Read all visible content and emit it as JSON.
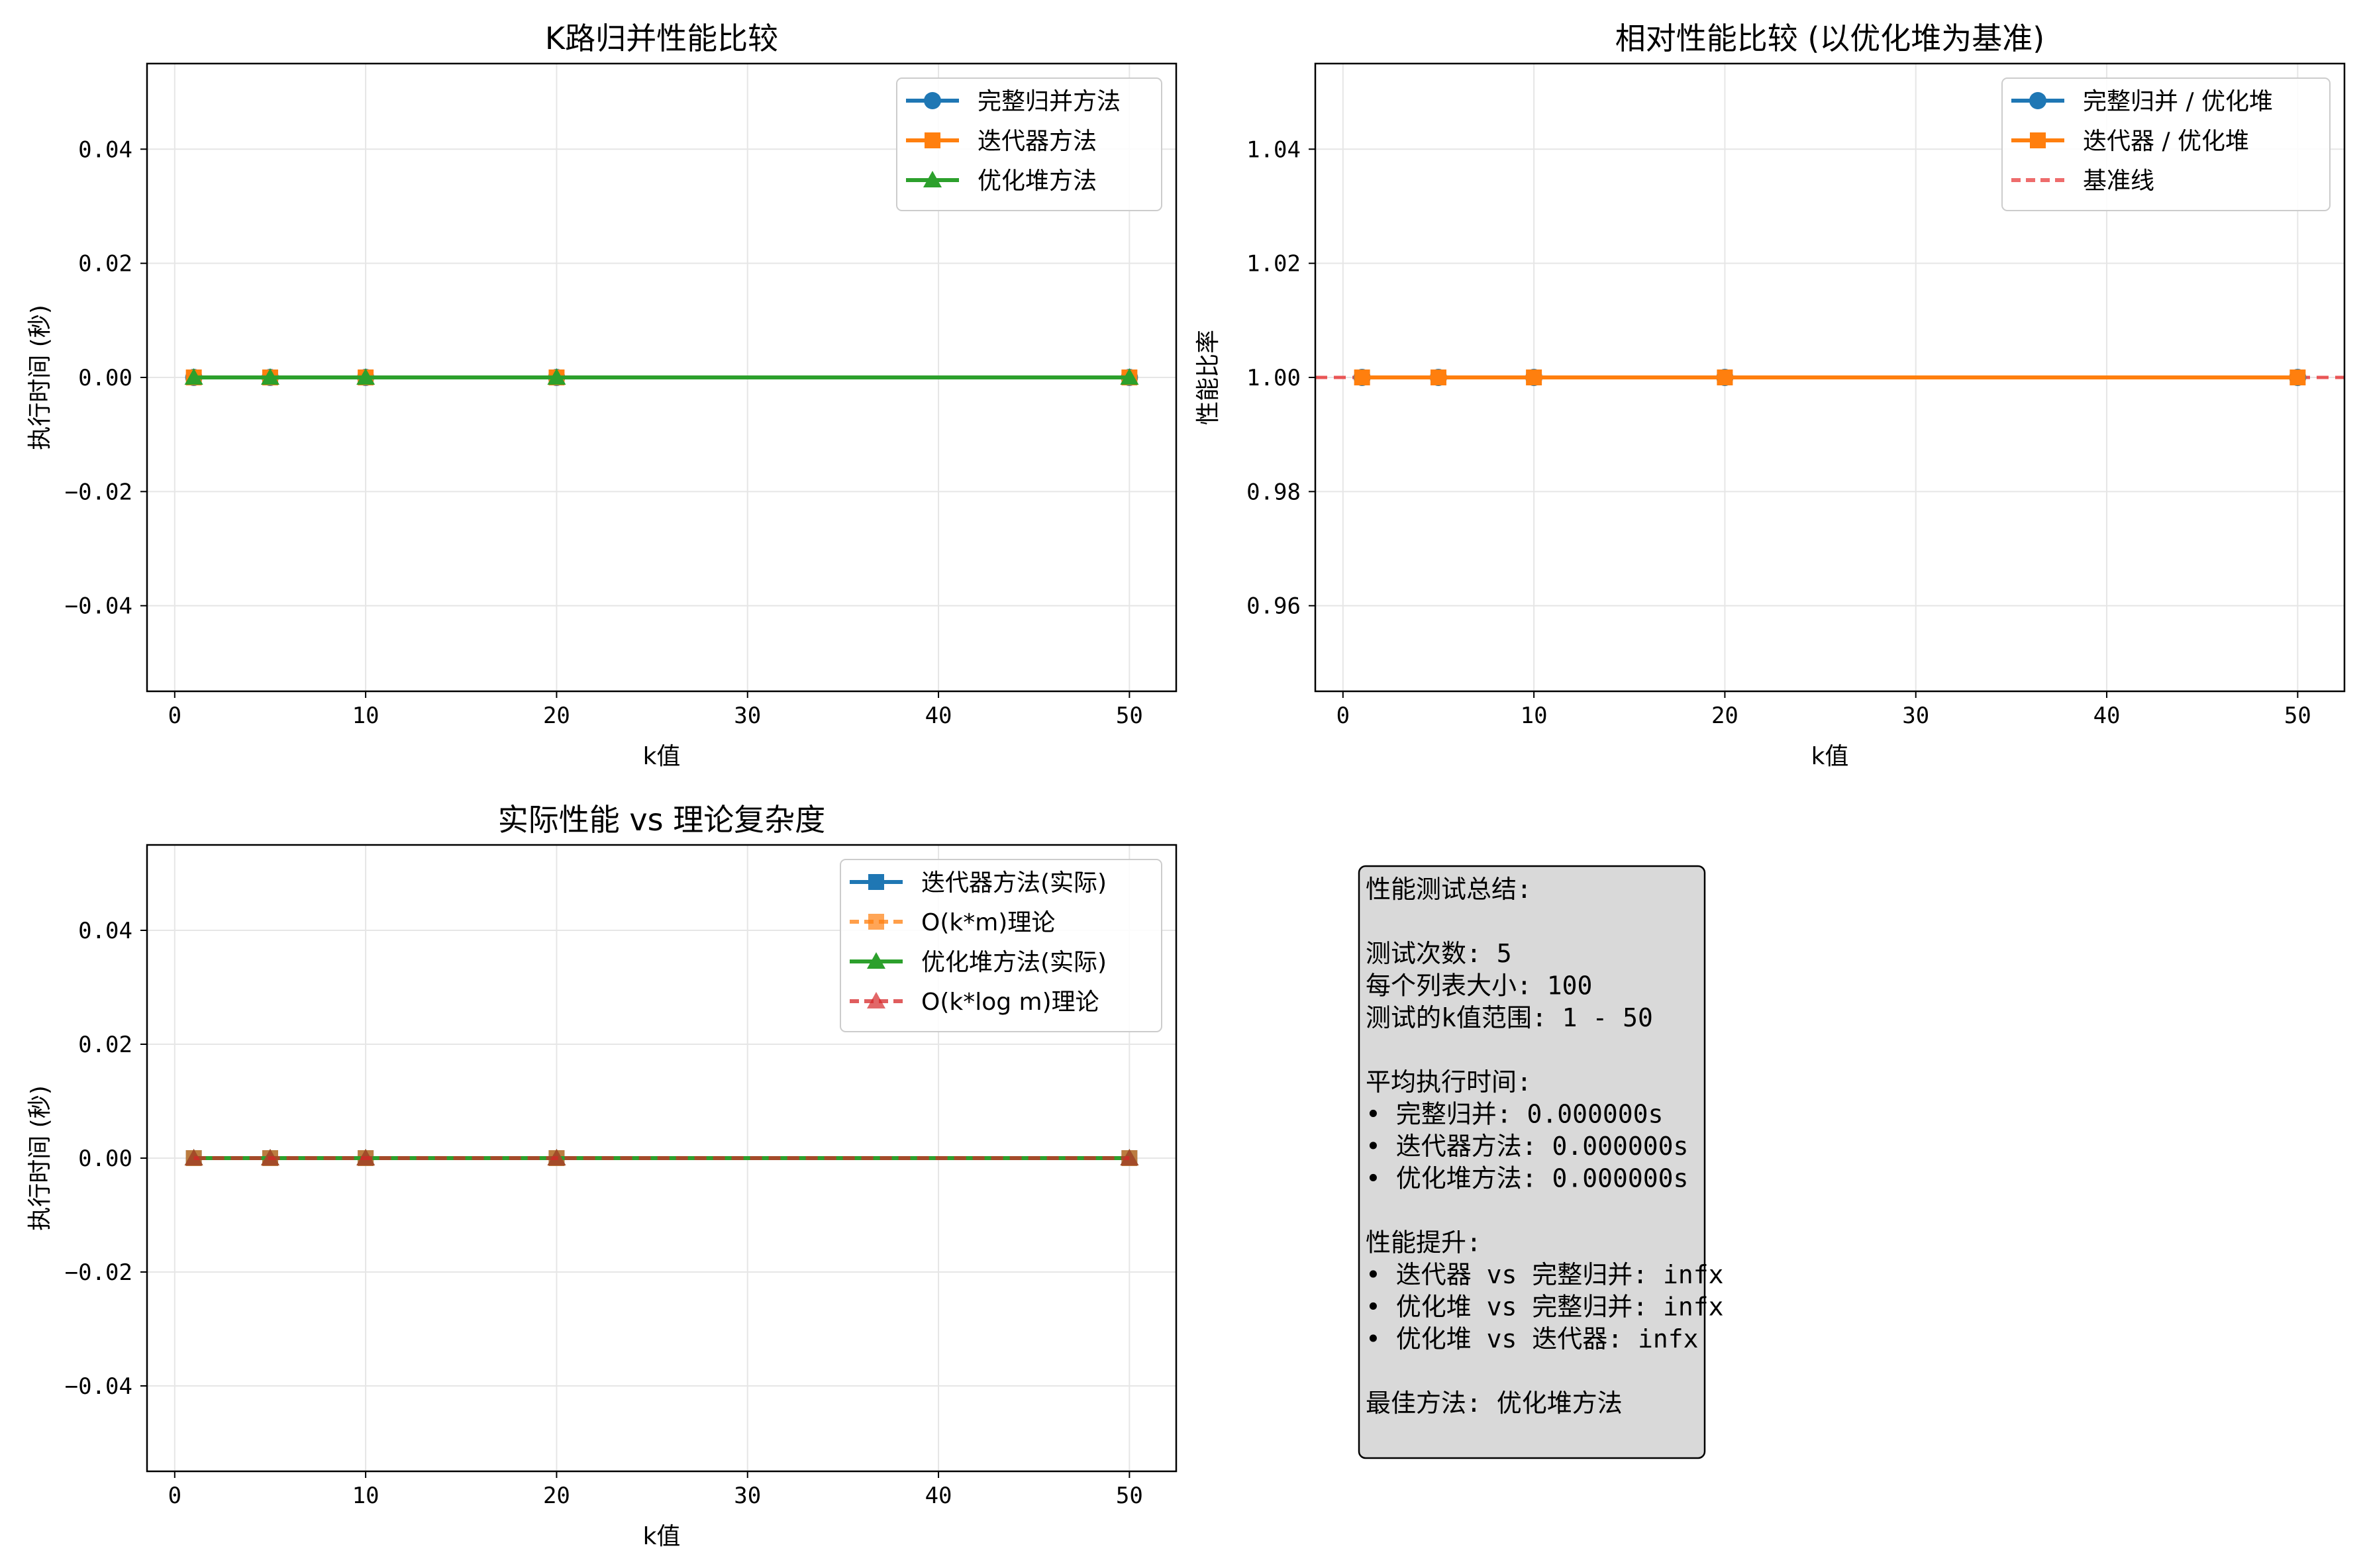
{
  "colors": {
    "blue": "#1f77b4",
    "orange": "#ff7f0e",
    "green": "#2ca02c",
    "red": "#d62728",
    "baseline_red": "#e83b3b",
    "grid": "#e6e6e6",
    "info_bg": "#d9d9d9"
  },
  "chart_data": [
    {
      "type": "line",
      "title": "K路归并性能比较",
      "xlabel": "k值",
      "ylabel": "执行时间 (秒)",
      "x": [
        1,
        5,
        10,
        20,
        50
      ],
      "xlim": [
        -1.45,
        52.45
      ],
      "ylim": [
        -0.055,
        0.055
      ],
      "xticks": [
        0,
        10,
        20,
        30,
        40,
        50
      ],
      "yticks": [
        0.04,
        0.02,
        0.0,
        -0.02,
        -0.04
      ],
      "ytick_labels": [
        "0.04",
        "0.02",
        "0.00",
        "−0.02",
        "−0.04"
      ],
      "grid": true,
      "legend_position": "top-right",
      "series": [
        {
          "name": "完整归并方法",
          "values": [
            0,
            0,
            0,
            0,
            0
          ],
          "color": "blue",
          "marker": "circle",
          "dash": "solid"
        },
        {
          "name": "迭代器方法",
          "values": [
            0,
            0,
            0,
            0,
            0
          ],
          "color": "orange",
          "marker": "square",
          "dash": "solid"
        },
        {
          "name": "优化堆方法",
          "values": [
            0,
            0,
            0,
            0,
            0
          ],
          "color": "green",
          "marker": "triangle",
          "dash": "solid"
        }
      ]
    },
    {
      "type": "line",
      "title": "相对性能比较 (以优化堆为基准)",
      "xlabel": "k值",
      "ylabel": "性能比率",
      "x": [
        1,
        5,
        10,
        20,
        50
      ],
      "xlim": [
        -1.45,
        52.45
      ],
      "ylim": [
        0.945,
        1.055
      ],
      "xticks": [
        0,
        10,
        20,
        30,
        40,
        50
      ],
      "yticks": [
        1.04,
        1.02,
        1.0,
        0.98,
        0.96
      ],
      "ytick_labels": [
        "1.04",
        "1.02",
        "1.00",
        "0.98",
        "0.96"
      ],
      "grid": true,
      "legend_position": "top-right",
      "series": [
        {
          "name": "完整归并 / 优化堆",
          "values": [
            1,
            1,
            1,
            1,
            1
          ],
          "color": "blue",
          "marker": "circle",
          "dash": "solid"
        },
        {
          "name": "迭代器 / 优化堆",
          "values": [
            1,
            1,
            1,
            1,
            1
          ],
          "color": "orange",
          "marker": "square",
          "dash": "solid"
        }
      ],
      "reference_line": {
        "name": "基准线",
        "y": 1.0,
        "color": "baseline_red",
        "dash": "dashed"
      }
    },
    {
      "type": "line",
      "title": "实际性能 vs 理论复杂度",
      "xlabel": "k值",
      "ylabel": "执行时间 (秒)",
      "x": [
        1,
        5,
        10,
        20,
        50
      ],
      "xlim": [
        -1.45,
        52.45
      ],
      "ylim": [
        -0.055,
        0.055
      ],
      "xticks": [
        0,
        10,
        20,
        30,
        40,
        50
      ],
      "yticks": [
        0.04,
        0.02,
        0.0,
        -0.02,
        -0.04
      ],
      "ytick_labels": [
        "0.04",
        "0.02",
        "0.00",
        "−0.02",
        "−0.04"
      ],
      "grid": true,
      "legend_position": "top-right",
      "series": [
        {
          "name": "迭代器方法(实际)",
          "values": [
            0,
            0,
            0,
            0,
            0
          ],
          "color": "blue",
          "marker": "square",
          "dash": "solid"
        },
        {
          "name": "O(k*m)理论",
          "values": [
            0,
            0,
            0,
            0,
            0
          ],
          "color": "orange",
          "marker": "square",
          "dash": "dashed"
        },
        {
          "name": "优化堆方法(实际)",
          "values": [
            0,
            0,
            0,
            0,
            0
          ],
          "color": "green",
          "marker": "triangle",
          "dash": "solid"
        },
        {
          "name": "O(k*log m)理论",
          "values": [
            0,
            0,
            0,
            0,
            0
          ],
          "color": "red",
          "marker": "triangle",
          "dash": "dashed"
        }
      ]
    }
  ],
  "info_box": {
    "lines": [
      "性能测试总结:",
      "",
      "测试次数: 5",
      "每个列表大小: 100",
      "测试的k值范围: 1 - 50",
      "",
      "平均执行时间:",
      "• 完整归并: 0.000000s",
      "• 迭代器方法: 0.000000s",
      "• 优化堆方法: 0.000000s",
      "",
      "性能提升:",
      "• 迭代器 vs 完整归并: infx",
      "• 优化堆 vs 完整归并: infx",
      "• 优化堆 vs 迭代器: infx",
      "",
      "最佳方法: 优化堆方法"
    ]
  }
}
